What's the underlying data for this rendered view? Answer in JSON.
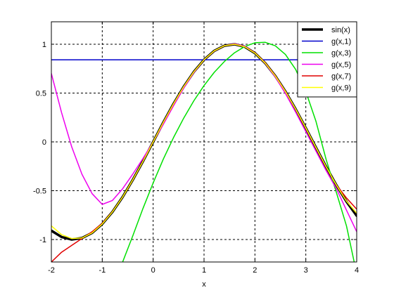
{
  "chart_data": {
    "type": "line",
    "title": "",
    "xlabel": "x",
    "ylabel": "",
    "xlim": [
      -2,
      4
    ],
    "ylim": [
      -1.23,
      1.23
    ],
    "grid": true,
    "legend_position": "top-right",
    "x_ticks": [
      {
        "value": -2,
        "label": "-2"
      },
      {
        "value": -1,
        "label": "-1"
      },
      {
        "value": 0,
        "label": "0"
      },
      {
        "value": 1,
        "label": "1"
      },
      {
        "value": 2,
        "label": "2"
      },
      {
        "value": 3,
        "label": "3"
      },
      {
        "value": 4,
        "label": "4"
      }
    ],
    "y_ticks": [
      {
        "value": -1,
        "label": "-1"
      },
      {
        "value": -0.5,
        "label": "-0.5"
      },
      {
        "value": 0,
        "label": "0"
      },
      {
        "value": 0.5,
        "label": "0.5"
      },
      {
        "value": 1,
        "label": "1"
      }
    ],
    "series": [
      {
        "name": "sin(x)",
        "color": "#000000",
        "width": 3.5,
        "x": [
          -2,
          -1.8,
          -1.6,
          -1.4,
          -1.2,
          -1,
          -0.8,
          -0.6,
          -0.4,
          -0.2,
          0,
          0.2,
          0.4,
          0.6,
          0.8,
          1,
          1.2,
          1.4,
          1.6,
          1.8,
          2,
          2.2,
          2.4,
          2.6,
          2.8,
          3,
          3.2,
          3.4,
          3.6,
          3.8,
          4
        ],
        "y": [
          -0.909,
          -0.974,
          -1.0,
          -0.985,
          -0.932,
          -0.841,
          -0.717,
          -0.565,
          -0.389,
          -0.199,
          0,
          0.199,
          0.389,
          0.565,
          0.717,
          0.841,
          0.932,
          0.985,
          1.0,
          0.974,
          0.909,
          0.808,
          0.675,
          0.516,
          0.335,
          0.141,
          -0.058,
          -0.256,
          -0.443,
          -0.612,
          -0.757
        ]
      },
      {
        "name": "g(x,1)",
        "color": "#0000cc",
        "width": 1.5,
        "x": [
          -2,
          4
        ],
        "y": [
          0.841,
          0.841
        ]
      },
      {
        "name": "g(x,3)",
        "color": "#00e000",
        "width": 1.5,
        "x": [
          -0.6,
          -0.4,
          -0.2,
          0,
          0.2,
          0.4,
          0.6,
          0.8,
          1,
          1.2,
          1.4,
          1.6,
          1.8,
          2,
          2.2,
          2.4,
          2.6,
          2.8,
          3,
          3.2,
          3.4,
          3.6,
          3.8,
          3.95
        ],
        "y": [
          -1.23,
          -0.963,
          -0.682,
          -0.42,
          -0.177,
          0.044,
          0.243,
          0.421,
          0.577,
          0.712,
          0.823,
          0.913,
          0.977,
          1.015,
          1.02,
          0.984,
          0.895,
          0.742,
          0.515,
          0.21,
          -0.182,
          -0.518,
          -0.862,
          -1.23
        ]
      },
      {
        "name": "g(x,5)",
        "color": "#ee00ee",
        "width": 1.5,
        "x": [
          -2,
          -1.8,
          -1.6,
          -1.4,
          -1.2,
          -1,
          -0.8,
          -0.6,
          -0.4,
          -0.2,
          0,
          0.2,
          0.4,
          0.6,
          0.8,
          1,
          1.2,
          1.4,
          1.6,
          1.8,
          2,
          2.2,
          2.4,
          2.6,
          2.8,
          3,
          3.2,
          3.4,
          3.6,
          3.8,
          4
        ],
        "y": [
          0.7,
          0.3,
          -0.05,
          -0.33,
          -0.53,
          -0.64,
          -0.6,
          -0.48,
          -0.33,
          -0.17,
          0,
          0.18,
          0.37,
          0.55,
          0.71,
          0.84,
          0.93,
          0.985,
          1.005,
          0.98,
          0.912,
          0.805,
          0.665,
          0.495,
          0.305,
          0.105,
          -0.095,
          -0.295,
          -0.48,
          -0.7,
          -0.92
        ]
      },
      {
        "name": "g(x,7)",
        "color": "#e00000",
        "width": 1.5,
        "x": [
          -2,
          -1.8,
          -1.6,
          -1.4,
          -1.2,
          -1,
          -0.8,
          -0.6,
          -0.4,
          -0.2,
          0,
          0.2,
          0.4,
          0.6,
          0.8,
          1,
          1.2,
          1.4,
          1.6,
          1.8,
          2,
          2.2,
          2.4,
          2.6,
          2.8,
          3,
          3.2,
          3.4,
          3.6,
          3.8,
          4
        ],
        "y": [
          -1.23,
          -1.13,
          -1.06,
          -0.99,
          -0.92,
          -0.835,
          -0.715,
          -0.565,
          -0.39,
          -0.2,
          0,
          0.198,
          0.388,
          0.565,
          0.717,
          0.841,
          0.932,
          0.985,
          1.0,
          0.975,
          0.912,
          0.812,
          0.678,
          0.518,
          0.335,
          0.14,
          -0.06,
          -0.258,
          -0.44,
          -0.575,
          -0.69
        ]
      },
      {
        "name": "g(x,9)",
        "color": "#ffff00",
        "width": 1.5,
        "x": [
          -2,
          -1.8,
          -1.6,
          -1.4,
          -1.2,
          -1,
          -0.8,
          -0.6,
          -0.4,
          -0.2,
          0,
          0.2,
          0.4,
          0.6,
          0.8,
          1,
          1.2,
          1.4,
          1.6,
          1.8,
          2,
          2.2,
          2.4,
          2.6,
          2.8,
          3,
          3.2,
          3.4,
          3.6,
          3.8,
          4
        ],
        "y": [
          -0.86,
          -0.95,
          -0.99,
          -0.985,
          -0.932,
          -0.841,
          -0.717,
          -0.565,
          -0.389,
          -0.199,
          0,
          0.199,
          0.389,
          0.565,
          0.717,
          0.841,
          0.932,
          0.985,
          1.0,
          0.974,
          0.909,
          0.808,
          0.675,
          0.516,
          0.335,
          0.141,
          -0.058,
          -0.256,
          -0.443,
          -0.607,
          -0.73
        ]
      }
    ]
  }
}
